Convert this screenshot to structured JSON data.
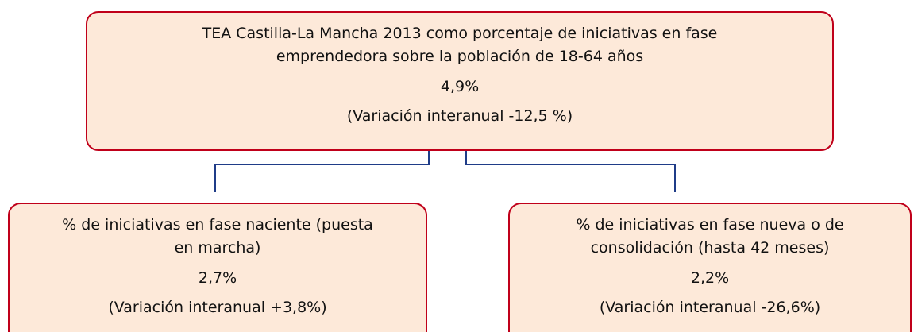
{
  "nodes": [
    {
      "title_lines": [
        "TEA Castilla-La Mancha 2013 como porcentaje de iniciativas en fase",
        "emprendedora sobre la población de 18-64 años"
      ],
      "value": "4,9%",
      "variation": "(Variación interanual -12,5 %)"
    },
    {
      "title_lines": [
        "% de iniciativas en fase naciente (puesta",
        "en marcha)"
      ],
      "value": "2,7%",
      "variation": "(Variación interanual +3,8%)"
    },
    {
      "title_lines": [
        "% de iniciativas en fase nueva o de",
        "consolidación (hasta 42 meses)"
      ],
      "value": "2,2%",
      "variation": "(Variación interanual -26,6%)"
    }
  ]
}
